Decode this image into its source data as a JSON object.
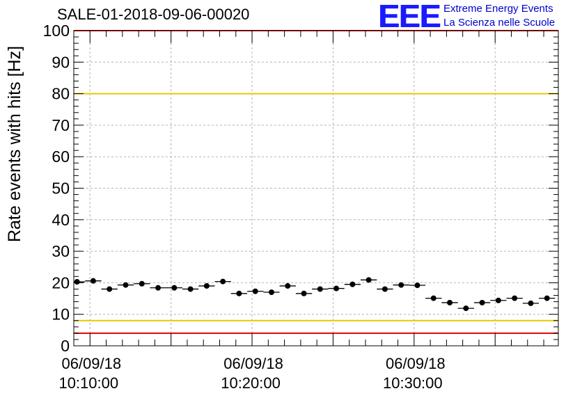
{
  "title": "SALE-01-2018-09-06-00020",
  "logo": {
    "mark": "EEE",
    "line1": "Extreme Energy Events",
    "line2": "La Scienza nelle Scuole"
  },
  "chart_data": {
    "type": "scatter",
    "title": "SALE-01-2018-09-06-00020",
    "xlabel": "",
    "ylabel": "Rate events with hits [Hz]",
    "ylim": [
      0,
      100
    ],
    "yticks": [
      0,
      10,
      20,
      30,
      40,
      50,
      60,
      70,
      80,
      90,
      100
    ],
    "x_axis": "time",
    "xlim_minutes": [
      9.0,
      38.9
    ],
    "xticks": [
      {
        "minute": 10,
        "date": "06/09/18",
        "time": "10:10:00"
      },
      {
        "minute": 20,
        "date": "06/09/18",
        "time": "10:20:00"
      },
      {
        "minute": 30,
        "date": "06/09/18",
        "time": "10:30:00"
      }
    ],
    "grid": true,
    "bin_width_minutes": 1,
    "series": [
      {
        "x_minutes": [
          9.2,
          10.2,
          11.2,
          12.2,
          13.2,
          14.2,
          15.2,
          16.2,
          17.2,
          18.2,
          19.2,
          20.2,
          21.2,
          22.2,
          23.2,
          24.2,
          25.2,
          26.2,
          27.2,
          28.2,
          29.2,
          30.2,
          31.2,
          32.2,
          33.2,
          34.2,
          35.2,
          36.2,
          37.2,
          38.2
        ],
        "values": [
          20.3,
          20.6,
          18.0,
          19.3,
          19.7,
          18.4,
          18.4,
          18.0,
          19.0,
          20.4,
          16.6,
          17.3,
          17.0,
          19.0,
          16.6,
          18.0,
          18.2,
          19.5,
          20.9,
          18.0,
          19.3,
          19.2,
          15.1,
          13.7,
          11.9,
          13.7,
          14.4,
          15.1,
          13.5,
          15.1
        ],
        "color": "#000000"
      }
    ],
    "reference_lines": [
      {
        "y": 80,
        "color": "#e8c800"
      },
      {
        "y": 8,
        "color": "#e8c800"
      },
      {
        "y": 100,
        "color": "#e00000"
      },
      {
        "y": 4,
        "color": "#e00000"
      }
    ]
  }
}
